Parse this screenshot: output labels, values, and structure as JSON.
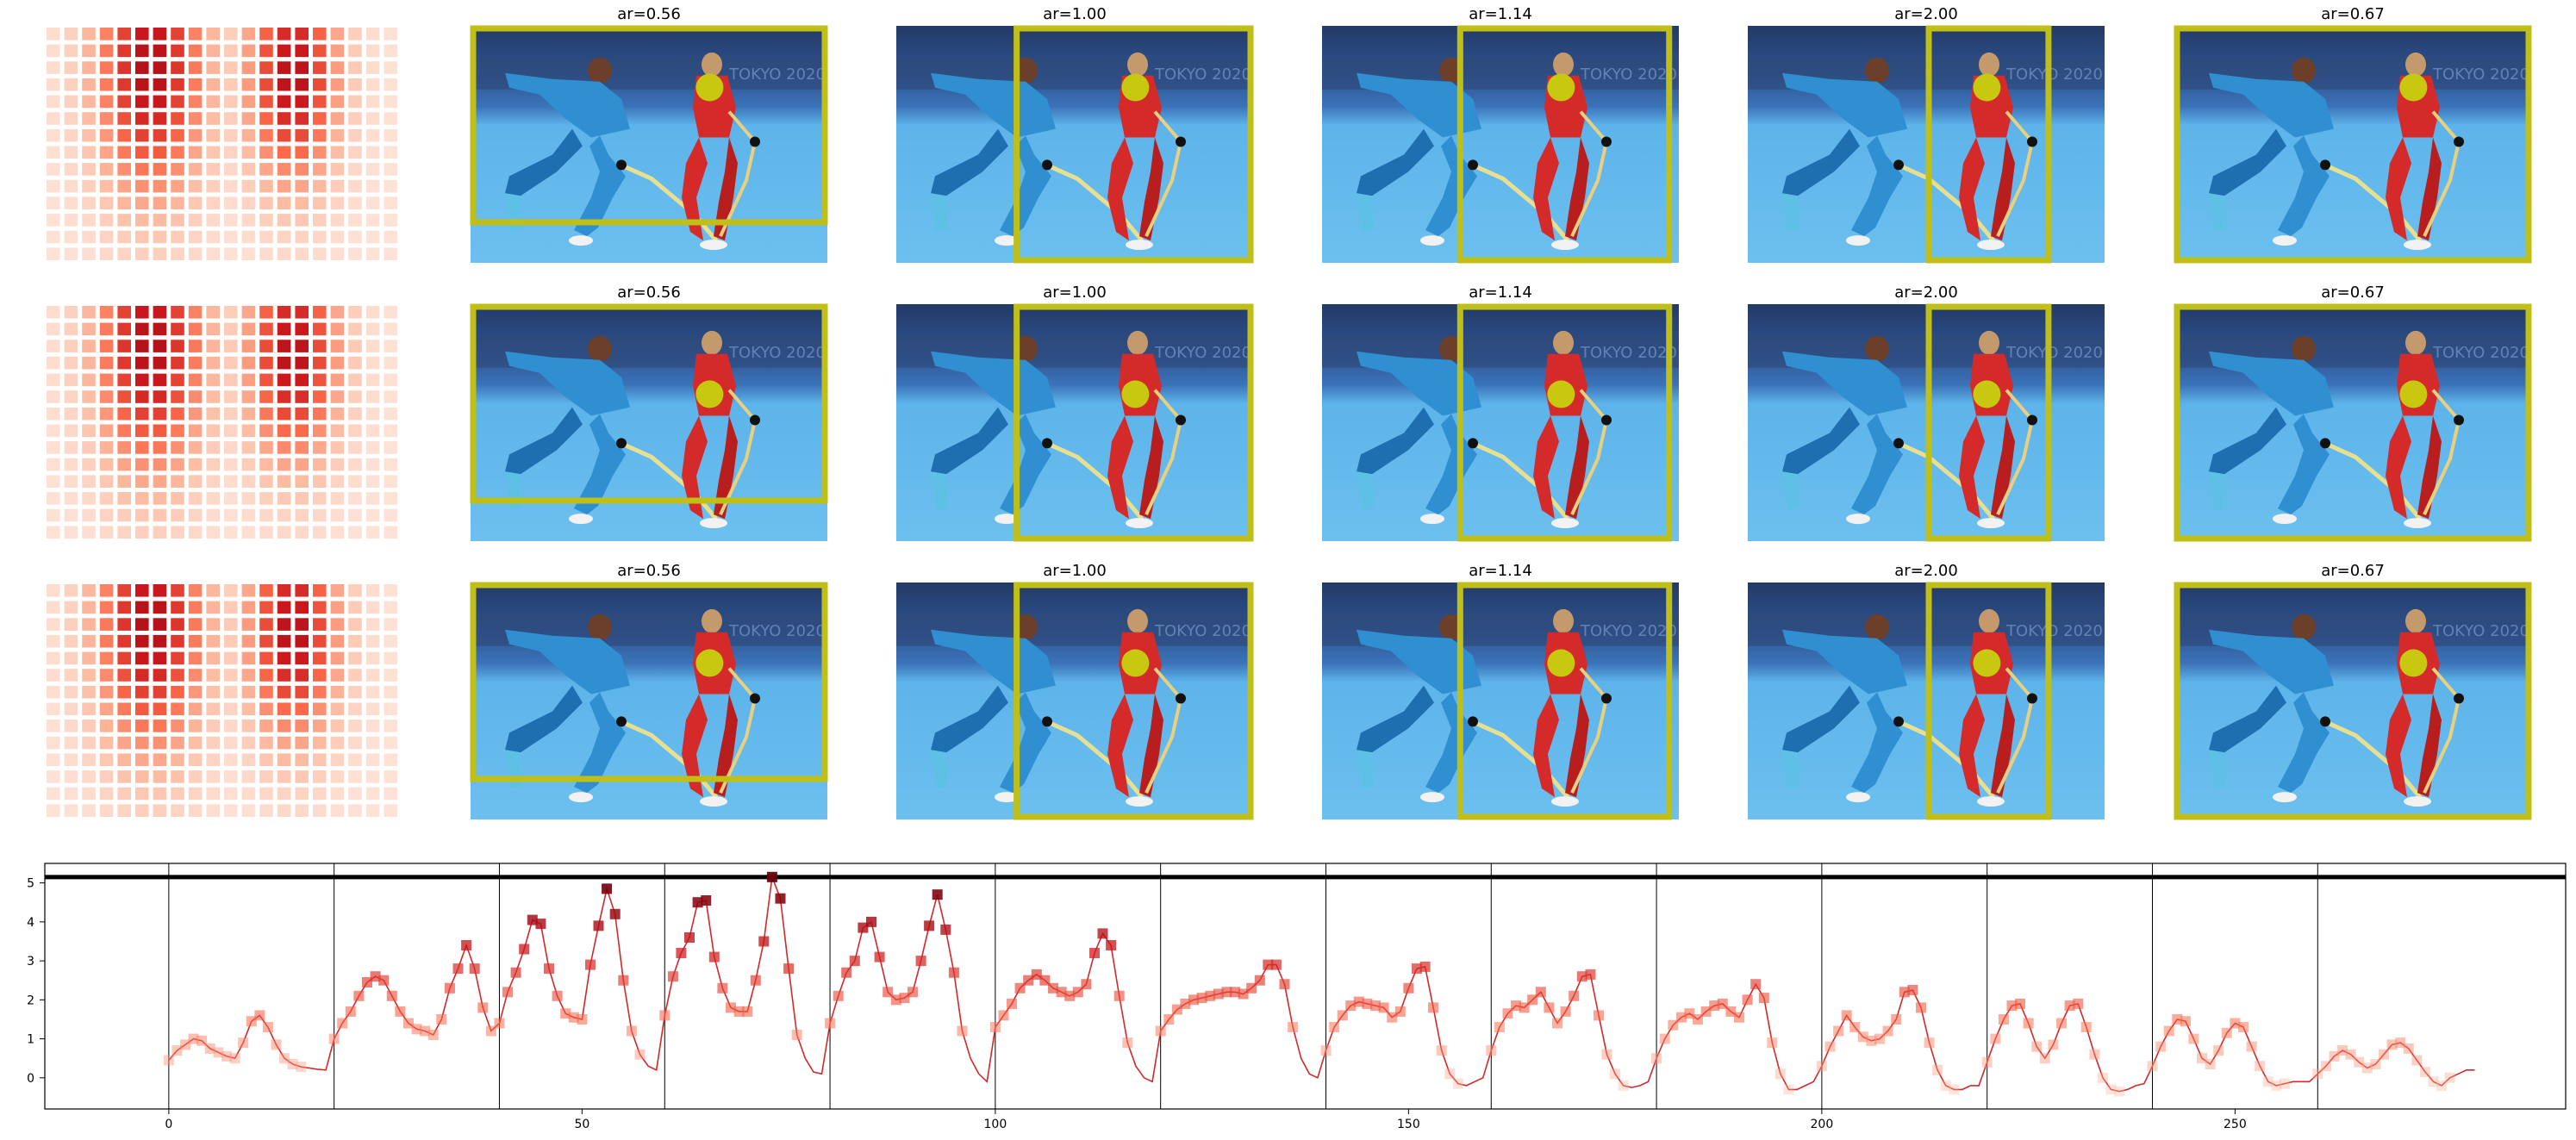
{
  "panel_rows": [
    {
      "titles": [
        "ar=0.56",
        "ar=1.00",
        "ar=1.14",
        "ar=2.00",
        "ar=0.67"
      ],
      "dot": [
        0.67,
        0.26
      ]
    },
    {
      "titles": [
        "ar=0.56",
        "ar=1.00",
        "ar=1.14",
        "ar=2.00",
        "ar=0.67"
      ],
      "dot": [
        0.67,
        0.38
      ]
    },
    {
      "titles": [
        "ar=0.56",
        "ar=1.00",
        "ar=1.14",
        "ar=2.00",
        "ar=0.67"
      ],
      "dot": [
        0.67,
        0.34
      ]
    }
  ],
  "colors": {
    "box": "#bfbf18",
    "dot": "#c8c810",
    "line": "#d62728",
    "marker_dark": "#b2182b",
    "sky": "#5db4ea",
    "banner": "#2e4a7a",
    "player_blue": "#2f8fd0",
    "player_red": "#d42a2a"
  },
  "heatmap": {
    "cols": 20,
    "rows": 14,
    "peaks": [
      [
        5.5,
        3.5,
        3.0
      ],
      [
        13.5,
        3.5,
        2.5
      ]
    ]
  },
  "chart_data": {
    "type": "line",
    "xlim": [
      -15,
      290
    ],
    "ylim": [
      -0.8,
      5.5
    ],
    "xticks": [
      0,
      50,
      100,
      150,
      200,
      250
    ],
    "yticks": [
      0,
      1,
      2,
      3,
      4,
      5
    ],
    "vlines": [
      0,
      20,
      40,
      60,
      80,
      100,
      120,
      140,
      160,
      180,
      200,
      220,
      240,
      260
    ],
    "hline": 5.15,
    "segments": [
      {
        "x0": 0,
        "y": [
          0.45,
          0.7,
          0.85,
          1.0,
          0.95,
          0.75,
          0.65,
          0.55,
          0.5,
          0.9,
          1.45,
          1.6,
          1.3,
          0.85,
          0.5,
          0.35,
          0.28,
          0.25,
          0.22,
          0.2
        ]
      },
      {
        "x0": 20,
        "y": [
          1.0,
          1.4,
          1.7,
          2.1,
          2.45,
          2.6,
          2.5,
          2.1,
          1.7,
          1.4,
          1.25,
          1.2,
          1.1,
          1.5,
          2.3,
          2.8,
          3.4,
          2.8,
          1.8,
          1.2
        ]
      },
      {
        "x0": 40,
        "y": [
          1.4,
          2.2,
          2.7,
          3.3,
          4.05,
          3.95,
          2.8,
          2.1,
          1.65,
          1.55,
          1.5,
          2.9,
          3.9,
          4.85,
          4.2,
          2.5,
          1.2,
          0.6,
          0.3,
          0.2
        ]
      },
      {
        "x0": 60,
        "y": [
          1.6,
          2.6,
          3.2,
          3.6,
          4.5,
          4.55,
          3.1,
          2.3,
          1.8,
          1.7,
          1.7,
          2.5,
          3.5,
          5.15,
          4.6,
          2.8,
          1.1,
          0.5,
          0.15,
          0.1
        ]
      },
      {
        "x0": 80,
        "y": [
          1.4,
          2.1,
          2.7,
          3.0,
          3.85,
          4.0,
          3.1,
          2.2,
          2.0,
          2.05,
          2.2,
          3.0,
          3.9,
          4.7,
          3.8,
          2.7,
          1.2,
          0.5,
          0.1,
          -0.1
        ]
      },
      {
        "x0": 100,
        "y": [
          1.3,
          1.6,
          1.9,
          2.3,
          2.5,
          2.65,
          2.5,
          2.3,
          2.2,
          2.1,
          2.2,
          2.4,
          3.2,
          3.7,
          3.4,
          2.1,
          0.9,
          0.3,
          0.0,
          -0.1
        ]
      },
      {
        "x0": 120,
        "y": [
          1.2,
          1.5,
          1.75,
          1.9,
          2.0,
          2.05,
          2.1,
          2.15,
          2.2,
          2.2,
          2.15,
          2.3,
          2.5,
          2.9,
          2.9,
          2.4,
          1.3,
          0.5,
          0.1,
          0.0
        ]
      },
      {
        "x0": 140,
        "y": [
          0.7,
          1.3,
          1.6,
          1.85,
          1.95,
          1.9,
          1.85,
          1.8,
          1.55,
          1.7,
          2.3,
          2.8,
          2.85,
          1.8,
          0.7,
          0.1,
          -0.15,
          -0.2,
          -0.1,
          0.0
        ]
      },
      {
        "x0": 160,
        "y": [
          0.7,
          1.3,
          1.65,
          1.85,
          1.8,
          2.0,
          2.2,
          1.8,
          1.4,
          1.7,
          2.1,
          2.6,
          2.65,
          1.6,
          0.6,
          0.1,
          -0.2,
          -0.25,
          -0.2,
          -0.1
        ]
      },
      {
        "x0": 180,
        "y": [
          0.5,
          1.0,
          1.35,
          1.55,
          1.65,
          1.5,
          1.7,
          1.85,
          1.9,
          1.7,
          1.55,
          2.0,
          2.4,
          2.05,
          0.9,
          0.1,
          -0.3,
          -0.3,
          -0.2,
          -0.1
        ]
      },
      {
        "x0": 200,
        "y": [
          0.3,
          0.8,
          1.2,
          1.6,
          1.3,
          1.05,
          0.95,
          1.0,
          1.2,
          1.5,
          2.2,
          2.25,
          1.8,
          0.9,
          0.2,
          -0.2,
          -0.3,
          -0.3,
          -0.2,
          -0.2
        ]
      },
      {
        "x0": 220,
        "y": [
          0.4,
          1.0,
          1.5,
          1.85,
          1.9,
          1.4,
          0.8,
          0.5,
          0.85,
          1.4,
          1.85,
          1.9,
          1.3,
          0.6,
          0.0,
          -0.3,
          -0.35,
          -0.3,
          -0.2,
          -0.15
        ]
      },
      {
        "x0": 240,
        "y": [
          0.3,
          0.8,
          1.2,
          1.5,
          1.45,
          1.0,
          0.5,
          0.35,
          0.7,
          1.15,
          1.4,
          1.3,
          0.8,
          0.3,
          -0.1,
          -0.2,
          -0.15,
          -0.1,
          -0.1,
          -0.1
        ]
      },
      {
        "x0": 260,
        "y": [
          0.1,
          0.3,
          0.55,
          0.7,
          0.6,
          0.4,
          0.25,
          0.35,
          0.6,
          0.85,
          0.9,
          0.75,
          0.45,
          0.15,
          -0.1,
          -0.2,
          0.0,
          0.1,
          0.2,
          0.2
        ]
      }
    ]
  }
}
